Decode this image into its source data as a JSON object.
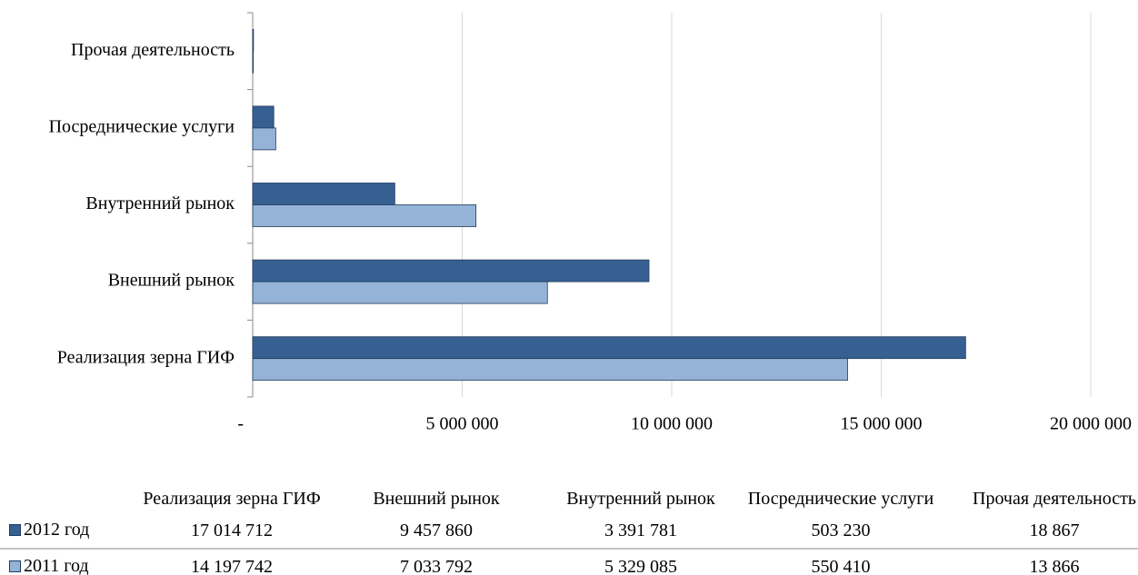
{
  "chart_data": {
    "type": "bar",
    "orientation": "horizontal",
    "categories": [
      "Реализация зерна ГИФ",
      "Внешний рынок",
      "Внутренний рынок",
      "Посреднические услуги",
      "Прочая деятельность"
    ],
    "series": [
      {
        "name": "2012 год",
        "color": "#376092",
        "values": [
          17014712,
          9457860,
          3391781,
          503230,
          18867
        ],
        "value_labels": [
          "17 014 712",
          "9 457 860",
          "3 391 781",
          "503 230",
          "18 867"
        ]
      },
      {
        "name": "2011 год",
        "color": "#95b3d7",
        "values": [
          14197742,
          7033792,
          5329085,
          550410,
          13866
        ],
        "value_labels": [
          "14 197 742",
          "7 033 792",
          "5 329 085",
          "550 410",
          "13 866"
        ]
      }
    ],
    "xlim": [
      0,
      20000000
    ],
    "xticks": [
      {
        "value": 0,
        "label": "-"
      },
      {
        "value": 5000000,
        "label": "5 000 000"
      },
      {
        "value": 10000000,
        "label": "10 000 000"
      },
      {
        "value": 15000000,
        "label": "15 000 000"
      },
      {
        "value": 20000000,
        "label": "20 000 000"
      }
    ],
    "grid": true
  }
}
